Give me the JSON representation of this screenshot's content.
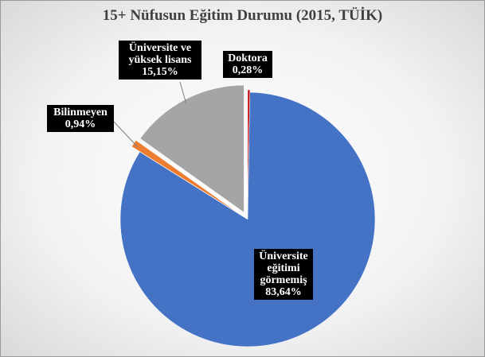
{
  "chart_data": {
    "type": "pie",
    "title": "15+ Nüfusun Eğitim Durumu (2015, TÜİK)",
    "categories": [
      "Doktora",
      "Üniversite eğitimi görmemiş",
      "Bilinmeyen",
      "Üniversite ve yüksek lisans"
    ],
    "values": [
      0.28,
      83.64,
      0.94,
      15.15
    ],
    "value_labels": [
      "0,28%",
      "83,64%",
      "0,94%",
      "15,15%"
    ],
    "colors": [
      "#c00000",
      "#4472c4",
      "#ed7d31",
      "#a5a5a5"
    ]
  }
}
